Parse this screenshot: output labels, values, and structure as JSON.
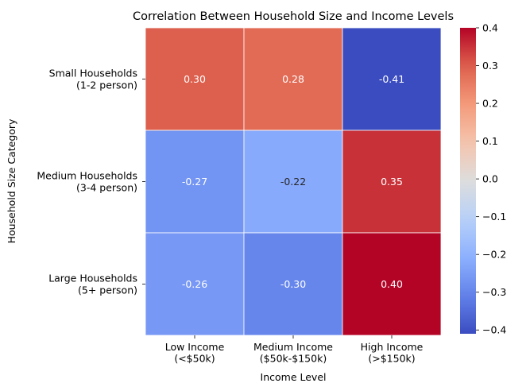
{
  "chart_data": {
    "type": "heatmap",
    "title": "Correlation Between Household Size and Income Levels",
    "xlabel": "Income Level",
    "ylabel": "Household Size Category",
    "x_categories": [
      [
        "Low Income",
        "(<$50k)"
      ],
      [
        "Medium Income",
        "($50k-$150k)"
      ],
      [
        "High Income",
        "(>$150k)"
      ]
    ],
    "y_categories": [
      [
        "Small Households",
        "(1-2 person)"
      ],
      [
        "Medium Households",
        "(3-4 person)"
      ],
      [
        "Large Households",
        "(5+ person)"
      ]
    ],
    "values": [
      [
        0.3,
        0.28,
        -0.41
      ],
      [
        -0.27,
        -0.22,
        0.35
      ],
      [
        -0.26,
        -0.3,
        0.4
      ]
    ],
    "annotations": [
      [
        "0.30",
        "0.28",
        "-0.41"
      ],
      [
        "-0.27",
        "-0.22",
        "0.35"
      ],
      [
        "-0.26",
        "-0.30",
        "0.40"
      ]
    ],
    "colormap": "coolwarm",
    "vmin": -0.41,
    "vmax": 0.4,
    "colorbar_ticks": [
      0.4,
      0.3,
      0.2,
      0.1,
      0.0,
      -0.1,
      -0.2,
      -0.3,
      -0.4
    ],
    "colorbar_tick_labels": [
      "0.4",
      "0.3",
      "0.2",
      "0.1",
      "0.0",
      "−0.1",
      "−0.2",
      "−0.3",
      "−0.4"
    ],
    "colors": {
      "cold": "#3b4cc0",
      "neutral": "#dddddd",
      "warm": "#b40426",
      "text": "#222222",
      "annotation_light": "#ffffff",
      "annotation_dark": "#262626",
      "gridline": "#ffffff"
    }
  }
}
